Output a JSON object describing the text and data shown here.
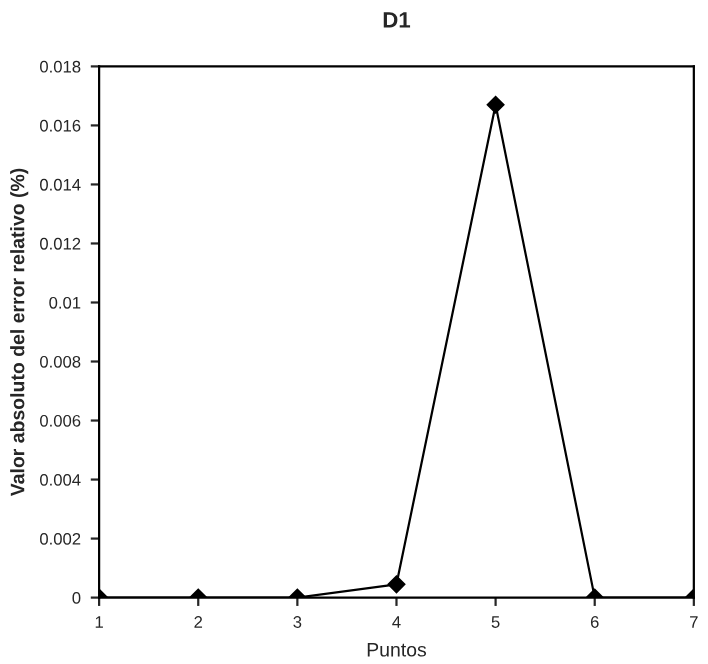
{
  "chart_data": {
    "type": "line",
    "title": "D1",
    "xlabel": "Puntos",
    "ylabel": "Valor absoluto del error relativo (%)",
    "x": [
      1,
      2,
      3,
      4,
      5,
      6,
      7
    ],
    "series": [
      {
        "color": "#000000",
        "values": [
          0,
          0,
          0,
          0.00045,
          0.0167,
          0,
          0
        ]
      }
    ],
    "xlim": [
      1,
      7
    ],
    "xticks": [
      1,
      2,
      3,
      4,
      5,
      6,
      7
    ],
    "ylim": [
      0,
      0.018
    ],
    "yticks": [
      0,
      0.002,
      0.004,
      0.006,
      0.008,
      0.01,
      0.012,
      0.014,
      0.016,
      0.018
    ],
    "marker": "diamond",
    "line_style": "solid",
    "grid": false,
    "legend": false
  }
}
